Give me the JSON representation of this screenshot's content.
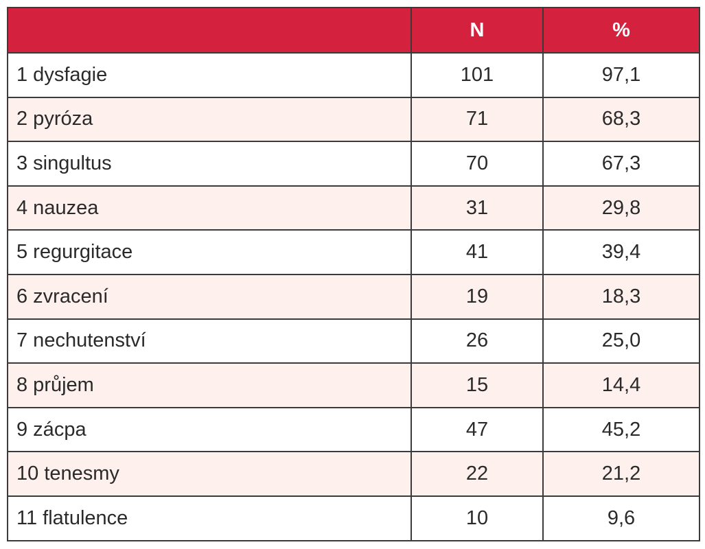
{
  "table": {
    "header": [
      "N",
      "%"
    ],
    "rows": [
      [
        "1 dysfagie",
        101,
        "97,1"
      ],
      [
        "2 pyróza",
        71,
        "68,3"
      ],
      [
        "3 singultus",
        70,
        "67,3"
      ],
      [
        "4 nauzea",
        31,
        "29,8"
      ],
      [
        "5 regurgitace",
        41,
        "39,4"
      ],
      [
        "6 zvracení",
        19,
        "18,3"
      ],
      [
        "7 nechutenství",
        26,
        "25,0"
      ],
      [
        "8 průjem",
        15,
        "14,4"
      ],
      [
        "9 zácpa",
        47,
        "45,2"
      ],
      [
        "10 tenesmy",
        22,
        "21,2"
      ],
      [
        "11 flatulence",
        10,
        "9,6"
      ]
    ]
  }
}
